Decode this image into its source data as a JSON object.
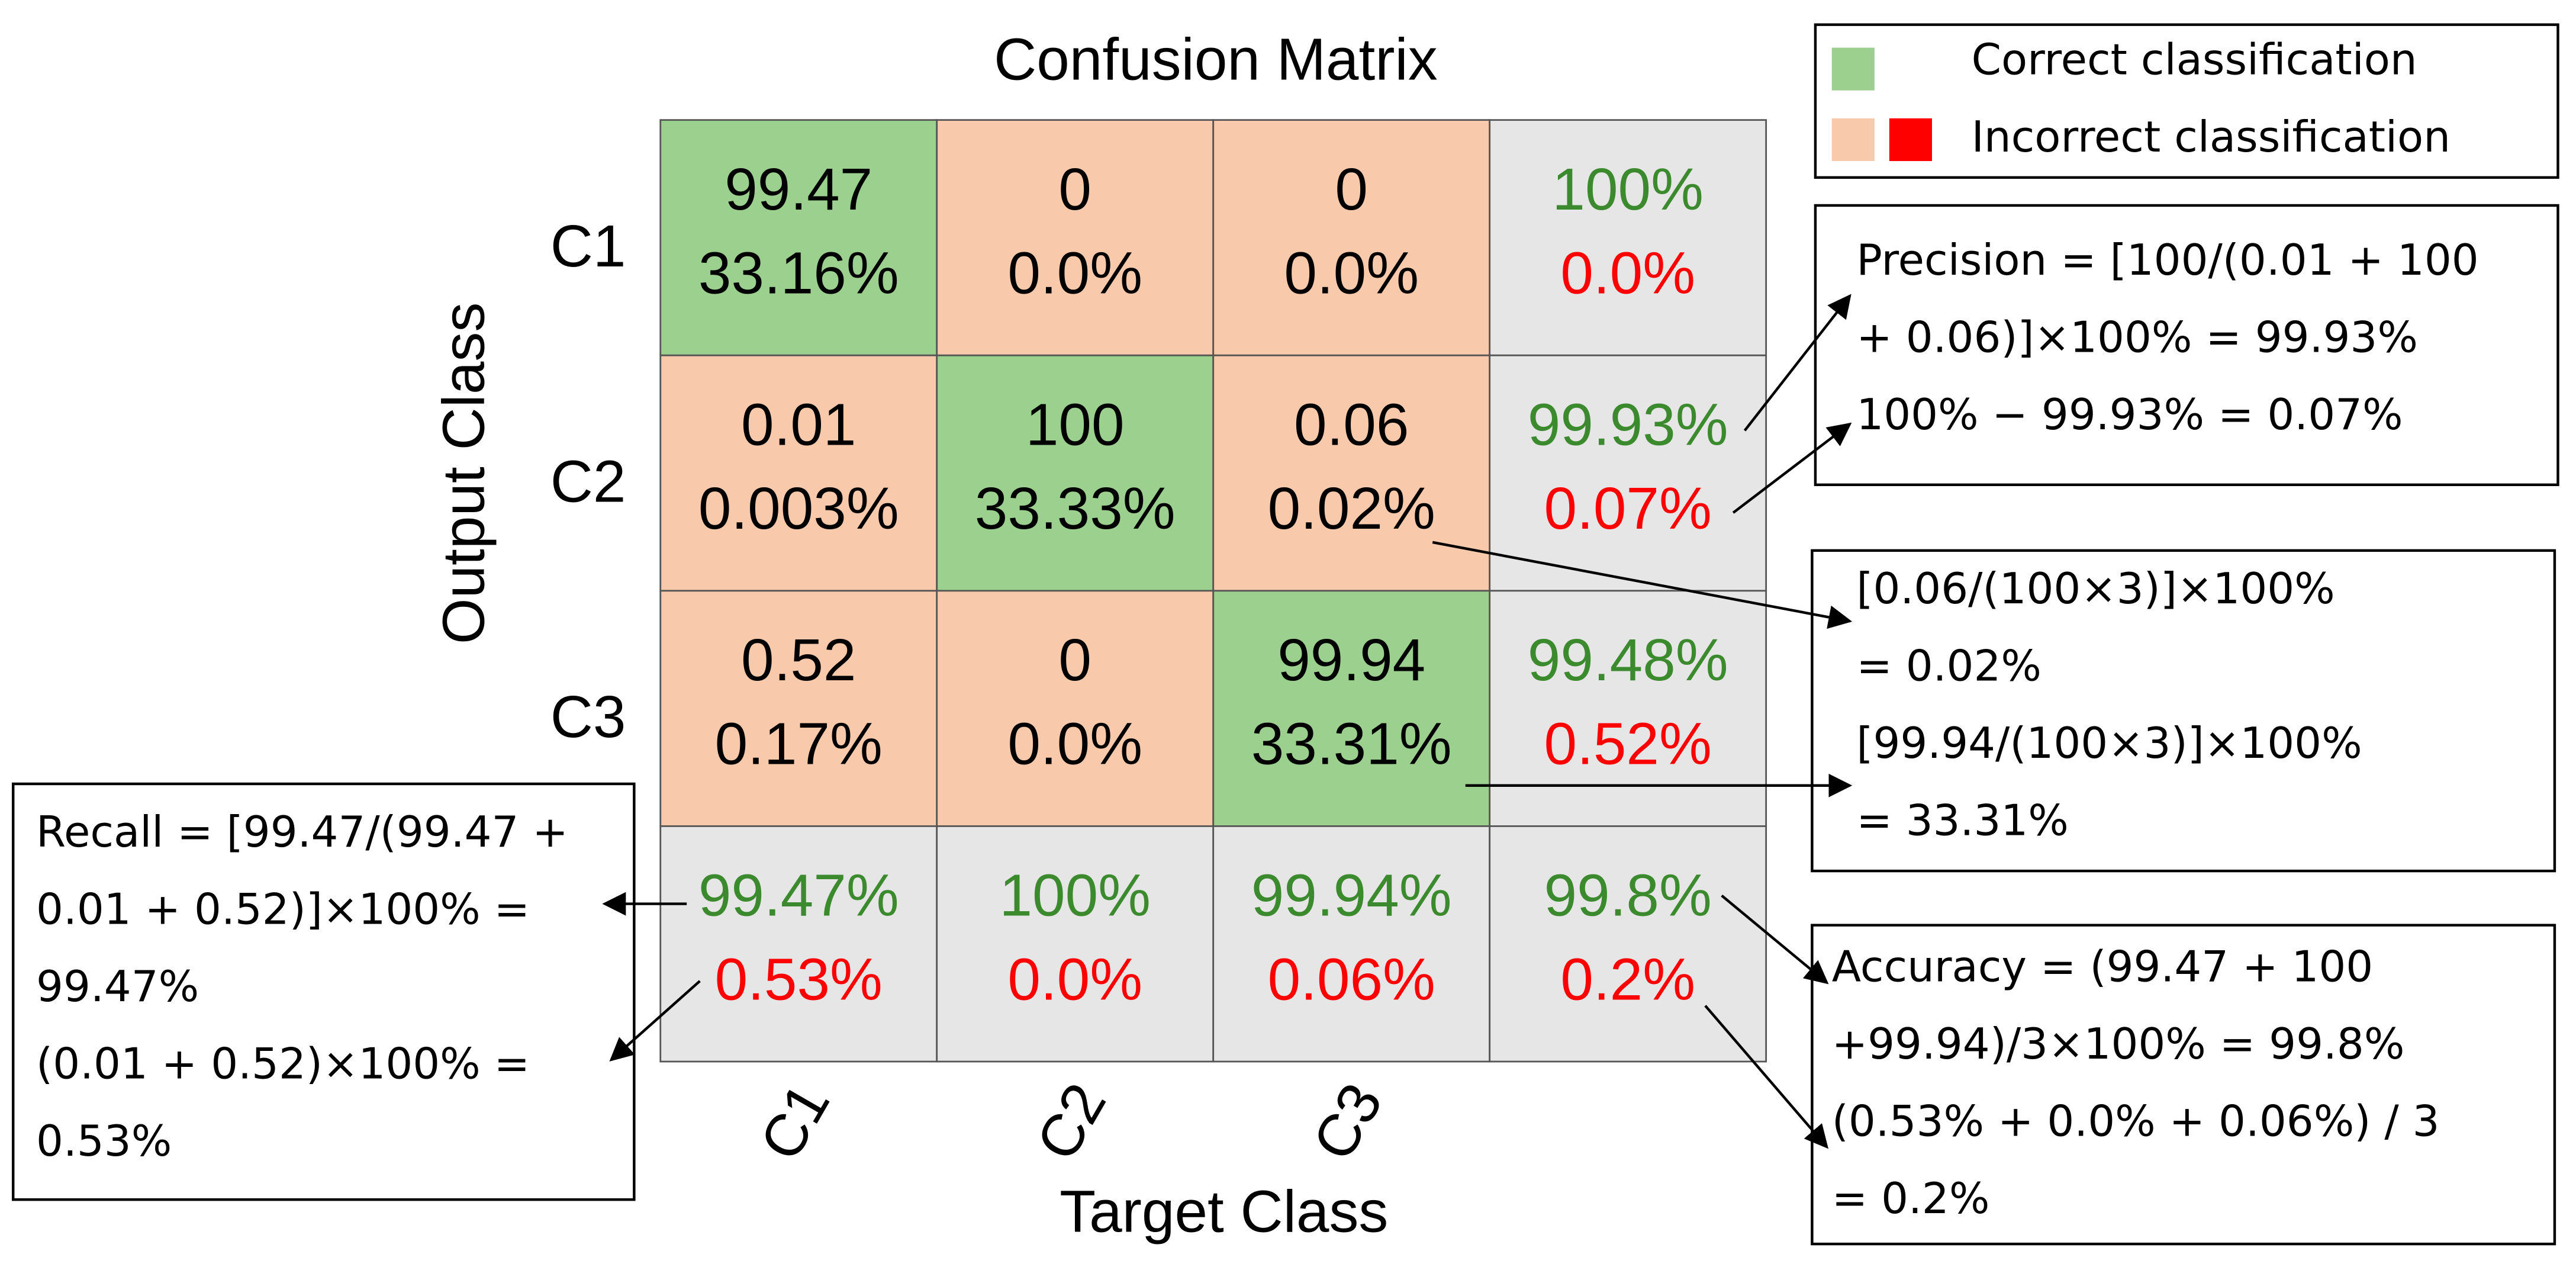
{
  "title": "Confusion Matrix",
  "x_label": "Target Class",
  "y_label": "Output Class",
  "row_labels": [
    "C1",
    "C2",
    "C3"
  ],
  "col_labels": [
    "C1",
    "C2",
    "C3"
  ],
  "cells": [
    [
      {
        "top": "99.47",
        "bottom": "33.16%"
      },
      {
        "top": "0",
        "bottom": "0.0%"
      },
      {
        "top": "0",
        "bottom": "0.0%"
      },
      {
        "top": "100%",
        "bottom": "0.0%"
      }
    ],
    [
      {
        "top": "0.01",
        "bottom": "0.003%"
      },
      {
        "top": "100",
        "bottom": "33.33%"
      },
      {
        "top": "0.06",
        "bottom": "0.02%"
      },
      {
        "top": "99.93%",
        "bottom": "0.07%"
      }
    ],
    [
      {
        "top": "0.52",
        "bottom": "0.17%"
      },
      {
        "top": "0",
        "bottom": "0.0%"
      },
      {
        "top": "99.94",
        "bottom": "33.31%"
      },
      {
        "top": "99.48%",
        "bottom": "0.52%"
      }
    ],
    [
      {
        "top": "99.47%",
        "bottom": "0.53%"
      },
      {
        "top": "100%",
        "bottom": "0.0%"
      },
      {
        "top": "99.94%",
        "bottom": "0.06%"
      },
      {
        "top": "99.8%",
        "bottom": "0.2%"
      }
    ]
  ],
  "legend": [
    "Correct classification",
    "Incorrect classification"
  ],
  "notes": [
    {
      "lines": [
        "Precision = [100/(0.01 + 100",
        "+ 0.06)]×100% = 99.93%",
        "100% − 99.93% = 0.07%"
      ]
    },
    {
      "lines": [
        "[0.06/(100×3)]×100%",
        " = 0.02%",
        "[99.94/(100×3)]×100%",
        " = 33.31%"
      ]
    },
    {
      "lines": [
        "Accuracy = (99.47 + 100",
        "+99.94)/3×100% = 99.8%",
        "(0.53% + 0.0% + 0.06%) / 3",
        " = 0.2%"
      ]
    },
    {
      "lines": [
        "Recall = [99.47/(99.47 +",
        "0.01 + 0.52)]×100% =",
        "99.47%",
        "(0.01 + 0.52)×100% =",
        "0.53%"
      ]
    }
  ]
}
